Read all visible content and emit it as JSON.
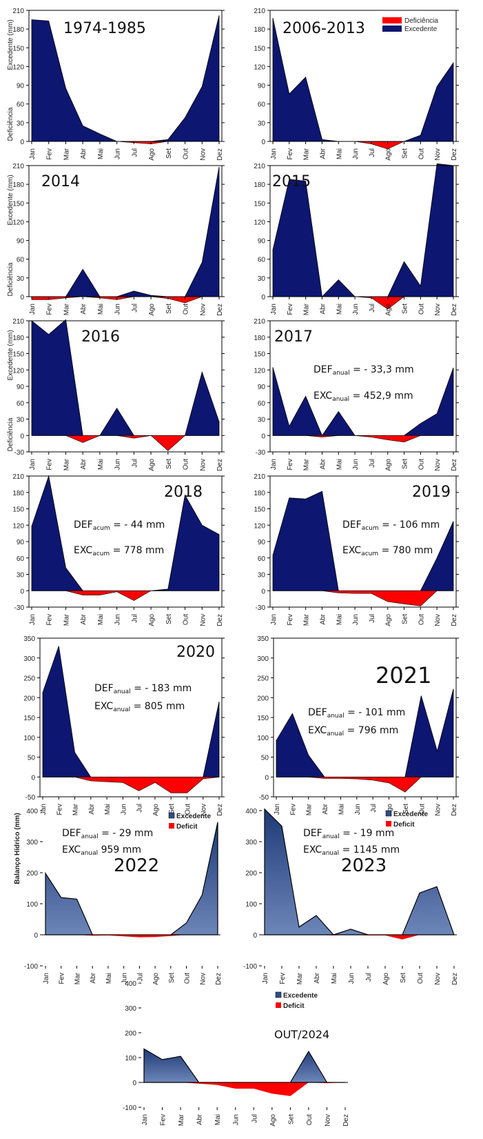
{
  "y_axis_labels": {
    "excedente": "Excedente (mm)",
    "deficiencia": "Deficiência",
    "balanco": "Balanço Hídrico (mm)"
  },
  "colors": {
    "excedente_old": "#0d1670",
    "excedente_new": "#2d4d88",
    "deficit": "#ff0000"
  },
  "chart_data": [
    {
      "type": "area",
      "title": "1974-1985",
      "categories": [
        "Jan",
        "Fev",
        "Mar",
        "Abr",
        "Mai",
        "Jun",
        "Jul",
        "Ago",
        "Set",
        "Out",
        "Nov",
        "Dez"
      ],
      "ylim": [
        0,
        210
      ],
      "ticks": [
        0,
        30,
        60,
        90,
        120,
        150,
        180,
        210
      ],
      "series": [
        {
          "name": "Excedente",
          "values": [
            195,
            193,
            85,
            25,
            12,
            0,
            0,
            0,
            3,
            38,
            88,
            202
          ]
        },
        {
          "name": "Deficiência",
          "values": [
            0,
            0,
            0,
            0,
            0,
            0,
            -2,
            -4,
            0,
            0,
            0,
            0
          ]
        }
      ]
    },
    {
      "type": "area",
      "title": "2006-2013",
      "categories": [
        "Jan",
        "Fev",
        "Mar",
        "Abr",
        "Mai",
        "Jun",
        "Jul",
        "Ago",
        "Set",
        "Out",
        "Nov",
        "Dez"
      ],
      "ylim": [
        0,
        210
      ],
      "ticks": [
        0,
        30,
        60,
        90,
        120,
        150,
        180,
        210
      ],
      "legend": [
        "Deficiência",
        "Excedente"
      ],
      "series": [
        {
          "name": "Excedente",
          "values": [
            198,
            76,
            103,
            3,
            0,
            0,
            0,
            0,
            0,
            10,
            88,
            126
          ]
        },
        {
          "name": "Deficiência",
          "values": [
            0,
            0,
            0,
            0,
            0,
            0,
            -4,
            -12,
            0,
            0,
            0,
            0
          ]
        }
      ]
    },
    {
      "type": "area",
      "title": "2014",
      "categories": [
        "Jan",
        "Fev",
        "Mar",
        "Abr",
        "Mai",
        "Jun",
        "Jul",
        "Ago",
        "Set",
        "Out",
        "Nov",
        "Dez"
      ],
      "ylim": [
        0,
        210
      ],
      "ticks": [
        0,
        30,
        60,
        90,
        120,
        150,
        180,
        210
      ],
      "series": [
        {
          "name": "Excedente",
          "values": [
            0,
            0,
            0,
            44,
            0,
            0,
            9,
            2,
            0,
            0,
            55,
            208
          ]
        },
        {
          "name": "Deficiência",
          "values": [
            -5,
            -5,
            -2,
            0,
            -2,
            -5,
            0,
            0,
            -3,
            -10,
            0,
            0
          ]
        }
      ]
    },
    {
      "type": "area",
      "title": "2015",
      "categories": [
        "Jan",
        "Fev",
        "Mar",
        "Abr",
        "Mai",
        "Jun",
        "Jul",
        "Ago",
        "Set",
        "Out",
        "Nov",
        "Dez"
      ],
      "ylim": [
        0,
        210
      ],
      "ticks": [
        0,
        30,
        60,
        90,
        120,
        150,
        180,
        210
      ],
      "series": [
        {
          "name": "Excedente",
          "values": [
            75,
            188,
            185,
            0,
            27,
            0,
            0,
            0,
            56,
            17,
            213,
            210
          ]
        },
        {
          "name": "Deficiência",
          "values": [
            0,
            0,
            0,
            0,
            0,
            0,
            -2,
            -20,
            0,
            0,
            0,
            0
          ]
        }
      ]
    },
    {
      "type": "area",
      "title": "2016",
      "categories": [
        "Jan",
        "Fev",
        "Mar",
        "Abr",
        "Mai",
        "Jun",
        "Jul",
        "Ago",
        "Set",
        "Out",
        "Nov",
        "Dez"
      ],
      "ylim": [
        -30,
        210
      ],
      "ticks": [
        -30,
        0,
        30,
        60,
        90,
        120,
        150,
        180,
        210
      ],
      "series": [
        {
          "name": "Excedente",
          "values": [
            210,
            185,
            212,
            0,
            0,
            50,
            0,
            0,
            0,
            0,
            116,
            25
          ]
        },
        {
          "name": "Deficiência",
          "values": [
            0,
            0,
            0,
            -13,
            0,
            0,
            -5,
            0,
            -28,
            0,
            0,
            0
          ]
        }
      ]
    },
    {
      "type": "area",
      "title": "2017",
      "categories": [
        "Jan",
        "Fev",
        "Mar",
        "Abr",
        "Mai",
        "Jun",
        "Jul",
        "Ago",
        "Set",
        "Out",
        "Nov",
        "Dez"
      ],
      "ylim": [
        -30,
        210
      ],
      "ticks": [
        -30,
        0,
        30,
        60,
        90,
        120,
        150,
        180,
        210
      ],
      "annotation": {
        "def_label": "DEF",
        "def_sub": "anual",
        "def_value": "= - 33,3 mm",
        "exc_label": "EXC",
        "exc_sub": "anual",
        "exc_value": "= 452,9 mm"
      },
      "series": [
        {
          "name": "Excedente",
          "values": [
            125,
            17,
            72,
            0,
            44,
            0,
            0,
            0,
            0,
            22,
            40,
            124
          ]
        },
        {
          "name": "Deficiência",
          "values": [
            0,
            0,
            0,
            -3,
            0,
            0,
            -3,
            -8,
            -12,
            0,
            0,
            0
          ]
        }
      ]
    },
    {
      "type": "area",
      "title": "2018",
      "categories": [
        "Jan",
        "Fev",
        "Mar",
        "Abr",
        "Mai",
        "Jun",
        "Jul",
        "Ago",
        "Set",
        "Out",
        "Nov",
        "Dez"
      ],
      "ylim": [
        -30,
        210
      ],
      "ticks": [
        -30,
        0,
        30,
        60,
        90,
        120,
        150,
        180,
        210
      ],
      "annotation": {
        "def_label": "DEF",
        "def_sub": "acum",
        "def_value": "= - 44 mm",
        "exc_label": "EXC",
        "exc_sub": "acum",
        "exc_value": "= 778 mm"
      },
      "series": [
        {
          "name": "Excedente",
          "values": [
            118,
            210,
            42,
            0,
            0,
            0,
            0,
            0,
            3,
            175,
            120,
            103
          ]
        },
        {
          "name": "Deficiência",
          "values": [
            0,
            0,
            0,
            -8,
            -8,
            -2,
            -18,
            0,
            0,
            0,
            0,
            0
          ]
        }
      ]
    },
    {
      "type": "area",
      "title": "2019",
      "categories": [
        "Jan",
        "Fev",
        "Mar",
        "Abr",
        "Mai",
        "Jun",
        "Jul",
        "Ago",
        "Set",
        "Out",
        "Nov",
        "Dez"
      ],
      "ylim": [
        -30,
        210
      ],
      "ticks": [
        -30,
        0,
        30,
        60,
        90,
        120,
        150,
        180,
        210
      ],
      "annotation": {
        "def_label": "DEF",
        "def_sub": "acum",
        "def_value": "= - 106 mm",
        "exc_label": "EXC",
        "exc_sub": "acum",
        "exc_value": "= 780 mm"
      },
      "series": [
        {
          "name": "Excedente",
          "values": [
            65,
            170,
            168,
            182,
            0,
            0,
            0,
            0,
            0,
            0,
            60,
            127
          ]
        },
        {
          "name": "Deficiência",
          "values": [
            0,
            0,
            0,
            0,
            -4,
            -5,
            -5,
            -20,
            -24,
            -28,
            0,
            0
          ]
        }
      ]
    },
    {
      "type": "area",
      "title": "2020",
      "categories": [
        "Jan",
        "Fev",
        "Mar",
        "Abr",
        "Mai",
        "Jun",
        "Jul",
        "Ago",
        "Set",
        "Out",
        "Nov",
        "Dez"
      ],
      "ylim": [
        -50,
        350
      ],
      "ticks": [
        -50,
        0,
        50,
        100,
        150,
        200,
        250,
        300,
        350
      ],
      "annotation": {
        "def_label": "DEF",
        "def_sub": "anual",
        "def_value": "= - 183 mm",
        "exc_label": "EXC",
        "exc_sub": "anual",
        "exc_value": "= 805 mm"
      },
      "series": [
        {
          "name": "Excedente",
          "values": [
            213,
            330,
            62,
            0,
            0,
            0,
            0,
            0,
            0,
            0,
            0,
            190
          ]
        },
        {
          "name": "Deficiência",
          "values": [
            0,
            0,
            0,
            -10,
            -12,
            -14,
            -35,
            -14,
            -40,
            -40,
            -5,
            0
          ]
        }
      ]
    },
    {
      "type": "area",
      "title": "2021",
      "categories": [
        "Jan",
        "Fev",
        "Mar",
        "Abr",
        "Mai",
        "Jun",
        "Jul",
        "Ago",
        "Set",
        "Out",
        "Nov",
        "Dez"
      ],
      "ylim": [
        -50,
        350
      ],
      "ticks": [
        -50,
        0,
        50,
        100,
        150,
        200,
        250,
        300,
        350
      ],
      "annotation": {
        "def_label": "DEF",
        "def_sub": "anual",
        "def_value": "= - 101 mm",
        "exc_label": "EXC",
        "exc_sub": "anual",
        "exc_value": "= 796 mm"
      },
      "series": [
        {
          "name": "Excedente",
          "values": [
            92,
            160,
            55,
            0,
            0,
            0,
            0,
            0,
            0,
            205,
            65,
            222
          ]
        },
        {
          "name": "Deficiência",
          "values": [
            0,
            0,
            0,
            -4,
            -4,
            -5,
            -8,
            -15,
            -38,
            0,
            0,
            0
          ]
        }
      ]
    },
    {
      "type": "area",
      "title": "2022",
      "categories": [
        "Jan",
        "Fev",
        "Mar",
        "Abr",
        "Mai",
        "Jun",
        "Jul",
        "Ago",
        "Set",
        "Out",
        "Nov",
        "Dez"
      ],
      "ylim": [
        -100,
        400
      ],
      "ticks": [
        -100,
        0,
        100,
        200,
        300,
        400
      ],
      "legend": [
        "Excedente",
        "Deficit"
      ],
      "annotation": {
        "def_label": "DEF",
        "def_sub": "anual",
        "def_value": "= - 29 mm",
        "exc_label": "EXC",
        "exc_sub": "anual",
        "exc_value": "959 mm"
      },
      "series": [
        {
          "name": "Excedente",
          "values": [
            198,
            120,
            115,
            0,
            0,
            0,
            0,
            0,
            0,
            38,
            128,
            363
          ]
        },
        {
          "name": "Deficit",
          "values": [
            0,
            0,
            0,
            -3,
            -2,
            -5,
            -8,
            -7,
            -4,
            0,
            0,
            0
          ]
        }
      ]
    },
    {
      "type": "area",
      "title": "2023",
      "categories": [
        "Jan",
        "Fev",
        "Mar",
        "Abr",
        "Mai",
        "Jun",
        "Jul",
        "Ago",
        "Set",
        "Out",
        "Nov",
        "Dez"
      ],
      "ylim": [
        -100,
        400
      ],
      "ticks": [
        -100,
        0,
        100,
        200,
        300,
        400
      ],
      "legend": [
        "Excedente",
        "Deficit"
      ],
      "annotation": {
        "def_label": "DEF",
        "def_sub": "anual",
        "def_value": "= - 19 mm",
        "exc_label": "EXC",
        "exc_sub": "anual",
        "exc_value": "= 1145 mm"
      },
      "series": [
        {
          "name": "Excedente",
          "values": [
            405,
            350,
            25,
            62,
            0,
            18,
            0,
            0,
            0,
            135,
            155,
            0
          ]
        },
        {
          "name": "Deficit",
          "values": [
            0,
            0,
            0,
            0,
            -2,
            0,
            -2,
            -2,
            -15,
            0,
            0,
            0
          ]
        }
      ]
    },
    {
      "type": "area",
      "title": "OUT/2024",
      "categories": [
        "Jan",
        "Fev",
        "Mar",
        "Abr",
        "Mai",
        "Jun",
        "Jul",
        "Ago",
        "Set",
        "Out",
        "Nov",
        "Dez"
      ],
      "ylim": [
        -100,
        400
      ],
      "ticks": [
        -100,
        0,
        100,
        200,
        300,
        400
      ],
      "legend": [
        "Excedente",
        "Deficit"
      ],
      "series": [
        {
          "name": "Excedente",
          "values": [
            135,
            92,
            105,
            0,
            0,
            0,
            0,
            0,
            0,
            125,
            0,
            0
          ]
        },
        {
          "name": "Deficit",
          "values": [
            0,
            0,
            0,
            -5,
            -10,
            -25,
            -25,
            -45,
            -55,
            0,
            -3,
            0
          ]
        }
      ]
    }
  ]
}
